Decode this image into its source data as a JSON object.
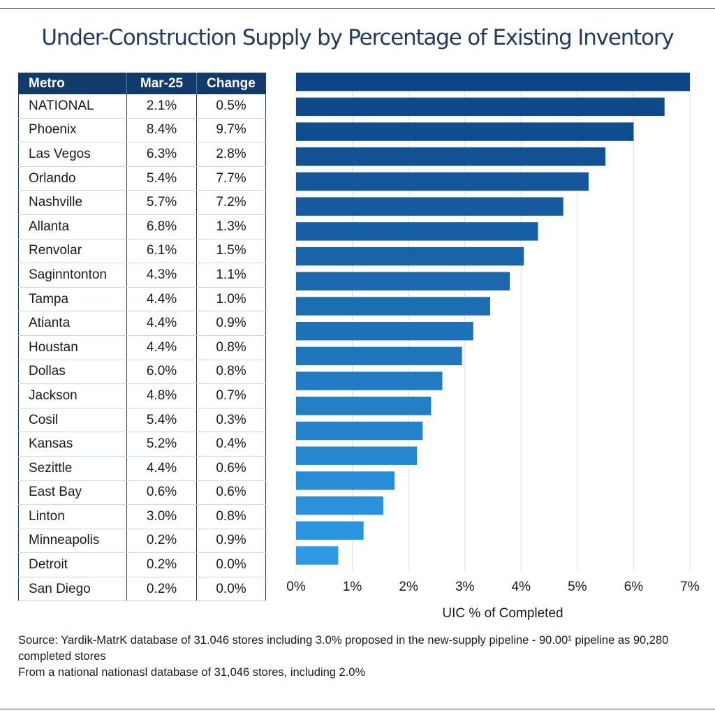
{
  "title": "Under-Construction Supply by Percentage of Existing Inventory",
  "table": {
    "headers": [
      "Metro",
      "Mar-25",
      "Change"
    ],
    "rows": [
      [
        "NATIONAL",
        "2.1%",
        "0.5%"
      ],
      [
        "Phoenix",
        "8.4%",
        "9.7%"
      ],
      [
        "Las Vegos",
        "6.3%",
        "2.8%"
      ],
      [
        "Orlando",
        "5.4%",
        "7.7%"
      ],
      [
        "Nashville",
        "5.7%",
        "7.2%"
      ],
      [
        "Allanta",
        "6.8%",
        "1.3%"
      ],
      [
        "Renvolar",
        "6.1%",
        "1.5%"
      ],
      [
        "Saginntonton",
        "4.3%",
        "1.1%"
      ],
      [
        "Tampa",
        "4.4%",
        "1.0%"
      ],
      [
        "Atianta",
        "4.4%",
        "0.9%"
      ],
      [
        "Houstan",
        "4.4%",
        "0.8%"
      ],
      [
        "Dollas",
        "6.0%",
        "0.8%"
      ],
      [
        "Jackson",
        "4.8%",
        "0.7%"
      ],
      [
        "Cosil",
        "5.4%",
        "0.3%"
      ],
      [
        "Kansas",
        "5.2%",
        "0.4%"
      ],
      [
        "Sezittle",
        "4.4%",
        "0.6%"
      ],
      [
        "East Bay",
        "0.6%",
        "0.6%"
      ],
      [
        "Linton",
        "3.0%",
        "0.8%"
      ],
      [
        "Minneapolis",
        "0.2%",
        "0.9%"
      ],
      [
        "Detroit",
        "0.2%",
        "0.0%"
      ],
      [
        "San Diego",
        "0.2%",
        "0.0%"
      ]
    ]
  },
  "chart_data": {
    "type": "bar",
    "orientation": "horizontal",
    "values": [
      7.0,
      6.55,
      6.0,
      5.5,
      5.2,
      4.75,
      4.3,
      4.05,
      3.8,
      3.45,
      3.15,
      2.95,
      2.6,
      2.4,
      2.25,
      2.15,
      1.75,
      1.55,
      1.2,
      0.75
    ],
    "xlabel": "UIC % of Completed",
    "xlim": [
      0,
      7
    ],
    "xticks": [
      "0%",
      "1%",
      "2%",
      "3%",
      "4%",
      "5%",
      "6%",
      "7%"
    ],
    "grid": true,
    "colors": {
      "darkest": "#0d4485",
      "lightest": "#2e9ae6"
    }
  },
  "footer": {
    "line1": "Source: Yardik-MatrK database of 31.046 stores including 3.0% proposed in the new-supply pipeline - 90.00¹ pipeline as 90,280 completed stores",
    "line2": "From a national nationasl database of 31,046 stores, including 2.0%"
  }
}
